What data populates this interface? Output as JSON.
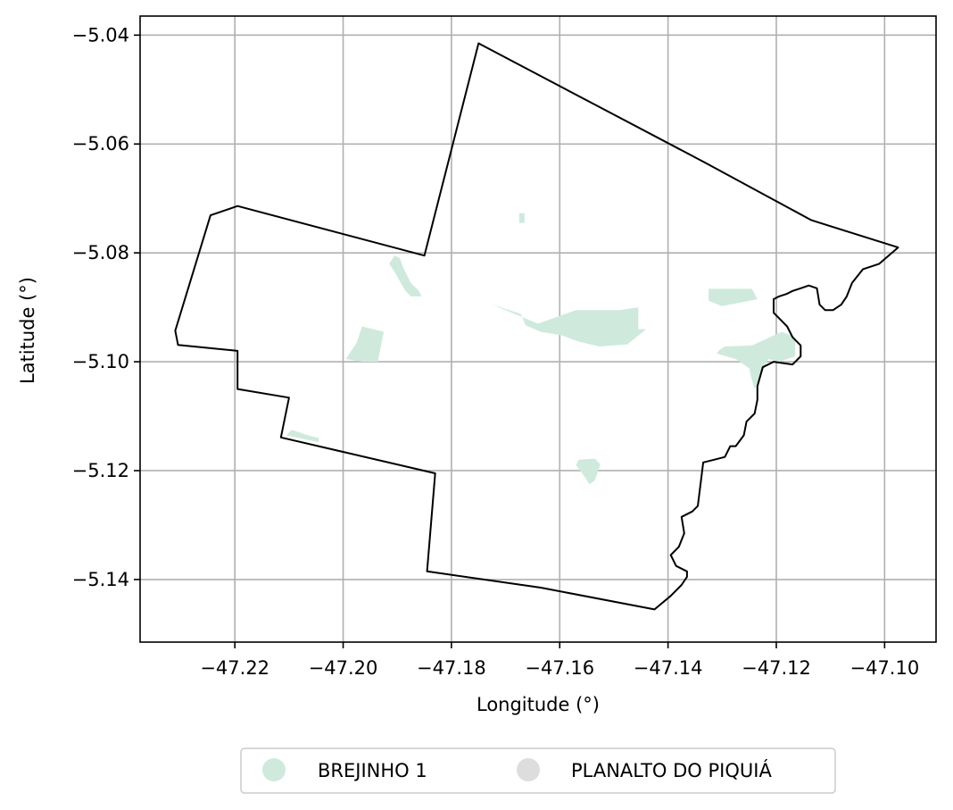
{
  "chart_data": {
    "type": "map",
    "title": "",
    "xlabel": "Longitude (°)",
    "ylabel": "Latitude (°)",
    "xlim": [
      -47.2375,
      -47.0905
    ],
    "ylim": [
      -5.1515,
      -5.0365
    ],
    "xticks": [
      -47.22,
      -47.2,
      -47.18,
      -47.16,
      -47.14,
      -47.12,
      -47.1
    ],
    "xtick_labels": [
      "−47.22",
      "−47.20",
      "−47.18",
      "−47.16",
      "−47.14",
      "−47.12",
      "−47.10"
    ],
    "yticks": [
      -5.04,
      -5.06,
      -5.08,
      -5.1,
      -5.12,
      -5.14
    ],
    "ytick_labels": [
      "−5.04",
      "−5.06",
      "−5.08",
      "−5.10",
      "−5.12",
      "−5.14"
    ],
    "grid": true,
    "legend_position": "bottom-center",
    "boundary": [
      [
        -47.175,
        -5.0415
      ],
      [
        -47.133,
        -5.0635
      ],
      [
        -47.1135,
        -5.074
      ],
      [
        -47.0975,
        -5.079
      ],
      [
        -47.101,
        -5.082
      ],
      [
        -47.104,
        -5.083
      ],
      [
        -47.106,
        -5.0855
      ],
      [
        -47.107,
        -5.088
      ],
      [
        -47.108,
        -5.0895
      ],
      [
        -47.1095,
        -5.0905
      ],
      [
        -47.111,
        -5.0905
      ],
      [
        -47.112,
        -5.0895
      ],
      [
        -47.1125,
        -5.0865
      ],
      [
        -47.114,
        -5.086
      ],
      [
        -47.1155,
        -5.0865
      ],
      [
        -47.117,
        -5.087
      ],
      [
        -47.118,
        -5.0875
      ],
      [
        -47.1195,
        -5.088
      ],
      [
        -47.1205,
        -5.0885
      ],
      [
        -47.1205,
        -5.091
      ],
      [
        -47.118,
        -5.0935
      ],
      [
        -47.117,
        -5.0955
      ],
      [
        -47.1155,
        -5.097
      ],
      [
        -47.1155,
        -5.099
      ],
      [
        -47.117,
        -5.1005
      ],
      [
        -47.1205,
        -5.1
      ],
      [
        -47.1225,
        -5.101
      ],
      [
        -47.1235,
        -5.1045
      ],
      [
        -47.1235,
        -5.107
      ],
      [
        -47.124,
        -5.1095
      ],
      [
        -47.1255,
        -5.111
      ],
      [
        -47.126,
        -5.1135
      ],
      [
        -47.1275,
        -5.1155
      ],
      [
        -47.1285,
        -5.1155
      ],
      [
        -47.1295,
        -5.1175
      ],
      [
        -47.1315,
        -5.118
      ],
      [
        -47.1335,
        -5.1185
      ],
      [
        -47.1345,
        -5.1265
      ],
      [
        -47.1355,
        -5.1275
      ],
      [
        -47.1375,
        -5.1285
      ],
      [
        -47.137,
        -5.1315
      ],
      [
        -47.138,
        -5.134
      ],
      [
        -47.1395,
        -5.1355
      ],
      [
        -47.1385,
        -5.1375
      ],
      [
        -47.1365,
        -5.1385
      ],
      [
        -47.1365,
        -5.1395
      ],
      [
        -47.1375,
        -5.141
      ],
      [
        -47.1395,
        -5.143
      ],
      [
        -47.1425,
        -5.1455
      ],
      [
        -47.1635,
        -5.1415
      ],
      [
        -47.1845,
        -5.1385
      ],
      [
        -47.183,
        -5.1205
      ],
      [
        -47.2115,
        -5.1139
      ],
      [
        -47.21,
        -5.1066
      ],
      [
        -47.2195,
        -5.105
      ],
      [
        -47.2195,
        -5.098
      ],
      [
        -47.2305,
        -5.0969
      ],
      [
        -47.231,
        -5.0943
      ],
      [
        -47.2245,
        -5.0731
      ],
      [
        -47.2195,
        -5.0714
      ],
      [
        -47.185,
        -5.0805
      ]
    ],
    "series": [
      {
        "name": "BREJINHO 1",
        "color": "#cfeadd",
        "regions": [
          [
            [
              -47.1675,
              -5.0727
            ],
            [
              -47.1665,
              -5.0727
            ],
            [
              -47.1665,
              -5.0745
            ],
            [
              -47.1675,
              -5.0745
            ]
          ],
          [
            [
              -47.1905,
              -5.0805
            ],
            [
              -47.1895,
              -5.081
            ],
            [
              -47.189,
              -5.0825
            ],
            [
              -47.1875,
              -5.0855
            ],
            [
              -47.186,
              -5.087
            ],
            [
              -47.1855,
              -5.088
            ],
            [
              -47.1875,
              -5.088
            ],
            [
              -47.1885,
              -5.087
            ],
            [
              -47.1905,
              -5.0835
            ],
            [
              -47.1915,
              -5.082
            ]
          ],
          [
            [
              -47.1965,
              -5.0935
            ],
            [
              -47.1925,
              -5.0945
            ],
            [
              -47.1935,
              -5.0995
            ],
            [
              -47.1935,
              -5.1
            ],
            [
              -47.1965,
              -5.1
            ],
            [
              -47.1995,
              -5.0995
            ],
            [
              -47.1975,
              -5.0965
            ]
          ],
          [
            [
              -47.1725,
              -5.0895
            ],
            [
              -47.164,
              -5.093
            ],
            [
              -47.157,
              -5.0905
            ],
            [
              -47.149,
              -5.0905
            ],
            [
              -47.1455,
              -5.09
            ],
            [
              -47.1455,
              -5.094
            ],
            [
              -47.144,
              -5.094
            ],
            [
              -47.1475,
              -5.0968
            ],
            [
              -47.1527,
              -5.0972
            ],
            [
              -47.1565,
              -5.0963
            ],
            [
              -47.1595,
              -5.0952
            ],
            [
              -47.1635,
              -5.0945
            ],
            [
              -47.1663,
              -5.0933
            ],
            [
              -47.1672,
              -5.0912
            ]
          ],
          [
            [
              -47.1325,
              -5.0866
            ],
            [
              -47.1245,
              -5.0866
            ],
            [
              -47.1235,
              -5.0885
            ],
            [
              -47.13,
              -5.0898
            ],
            [
              -47.1325,
              -5.0888
            ]
          ],
          [
            [
              -47.1295,
              -5.0972
            ],
            [
              -47.1245,
              -5.097
            ],
            [
              -47.119,
              -5.0945
            ],
            [
              -47.1165,
              -5.0955
            ],
            [
              -47.1165,
              -5.099
            ],
            [
              -47.1195,
              -5.1
            ],
            [
              -47.1215,
              -5.0995
            ],
            [
              -47.124,
              -5.105
            ],
            [
              -47.1247,
              -5.1027
            ],
            [
              -47.125,
              -5.1012
            ],
            [
              -47.1275,
              -5.0995
            ],
            [
              -47.131,
              -5.0985
            ],
            [
              -47.1305,
              -5.0978
            ]
          ],
          [
            [
              -47.2095,
              -5.1125
            ],
            [
              -47.2065,
              -5.1135
            ],
            [
              -47.2045,
              -5.114
            ],
            [
              -47.2045,
              -5.1148
            ],
            [
              -47.2105,
              -5.1135
            ]
          ],
          [
            [
              -47.1565,
              -5.118
            ],
            [
              -47.1535,
              -5.1178
            ],
            [
              -47.1525,
              -5.1188
            ],
            [
              -47.1535,
              -5.1218
            ],
            [
              -47.1545,
              -5.1225
            ],
            [
              -47.1555,
              -5.121
            ],
            [
              -47.157,
              -5.119
            ]
          ]
        ]
      },
      {
        "name": "PLANALTO DO PIQUIÁ",
        "color": "#dddddd",
        "regions": []
      }
    ]
  }
}
